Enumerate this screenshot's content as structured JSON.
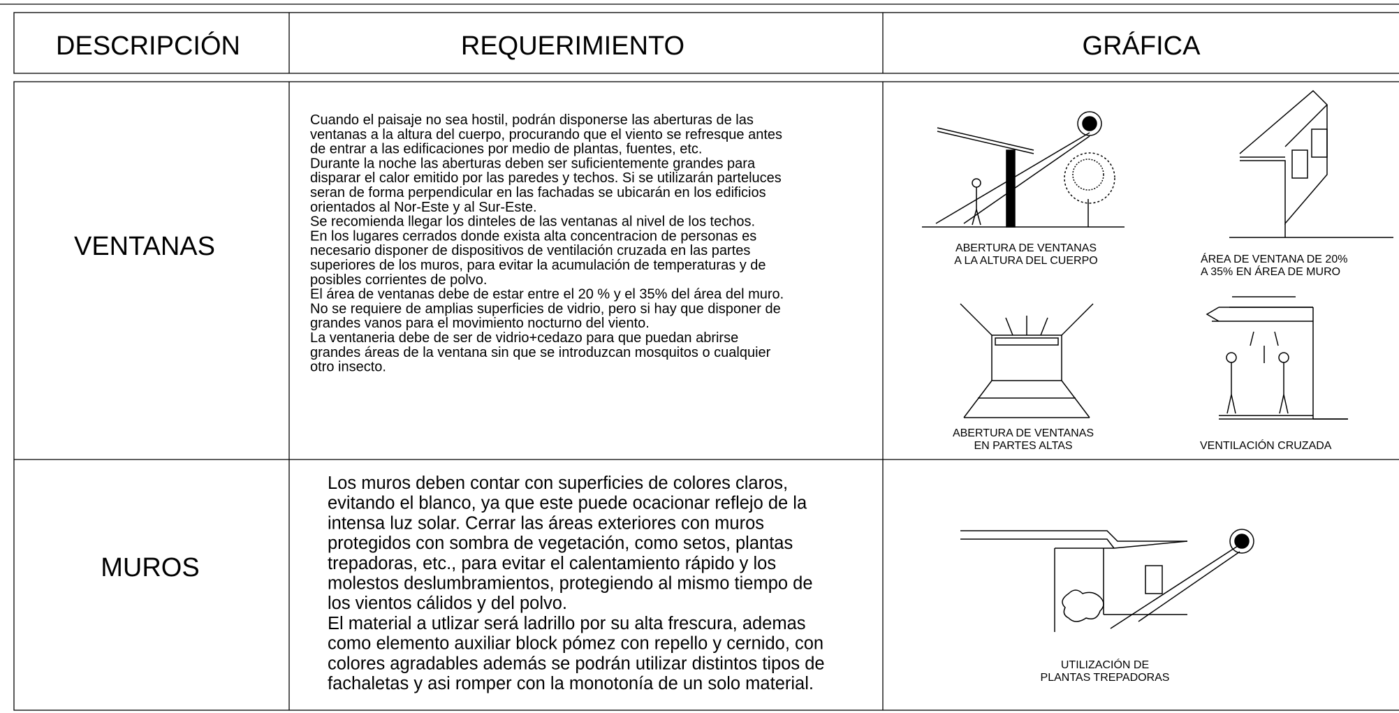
{
  "header": {
    "columns": [
      "DESCRIPCIÓN",
      "REQUERIMIENTO",
      "GRÁFICA"
    ]
  },
  "rows": [
    {
      "description": "VENTANAS",
      "requirement": [
        "Cuando el paisaje no sea hostil, podrán disponerse las aberturas de las",
        "ventanas a la altura del cuerpo, procurando que el viento se refresque antes",
        "de entrar a las edificaciones por medio de plantas, fuentes, etc.",
        "Durante la noche las aberturas deben ser suficientemente grandes para",
        "disparar el calor emitido por las paredes y techos. Si se utilizarán parteluces",
        "seran de forma perpendicular en las fachadas se ubicarán en los edificios",
        "orientados  al Nor-Este y al Sur-Este.",
        "Se recomienda llegar los dinteles de las ventanas al nivel de los techos.",
        "En los lugares cerrados donde exista alta concentracion de personas es",
        "necesario disponer de dispositivos de ventilación cruzada en las partes",
        "superiores de los muros, para evitar la acumulación de temperaturas y de",
        "posibles corrientes de polvo.",
        "El área de ventanas debe de estar entre el 20 % y el 35% del área del muro.",
        "No se requiere de amplias superficies de vidrio, pero si hay que disponer de",
        "grandes vanos para el movimiento nocturno del viento.",
        "La ventaneria debe de ser de vidrio+cedazo para que puedan abrirse",
        "grandes áreas de la ventana sin que se introduzcan mosquitos o cualquier",
        "otro insecto."
      ],
      "captions": [
        [
          "ABERTURA DE VENTANAS",
          "A LA ALTURA DEL CUERPO"
        ],
        [
          "ÁREA DE VENTANA DE 20%",
          "A 35% EN ÁREA DE MURO"
        ],
        [
          "ABERTURA DE VENTANAS",
          "EN PARTES ALTAS"
        ],
        [
          "VENTILACIÓN CRUZADA"
        ]
      ]
    },
    {
      "description": "MUROS",
      "requirement": [
        "Los muros deben contar con superficies de colores claros,",
        "evitando el blanco, ya que este puede ocacionar reflejo de la",
        "intensa luz solar.  Cerrar las áreas exteriores con muros",
        "protegidos con sombra de vegetación, como setos, plantas",
        "trepadoras, etc., para evitar el calentamiento rápido y los",
        "molestos deslumbramientos, protegiendo al mismo tiempo de",
        "los vientos cálidos y del polvo.",
        "El material a utlizar  será ladrillo por su alta frescura, ademas",
        "como elemento auxiliar block pómez con repello y cernido, con",
        "colores agradables además se podrán utilizar distintos tipos de",
        "fachaletas y asi romper con la monotonía de un solo material."
      ],
      "captions": [
        [
          "UTILIZACIÓN DE",
          "PLANTAS TREPADORAS"
        ]
      ]
    }
  ]
}
